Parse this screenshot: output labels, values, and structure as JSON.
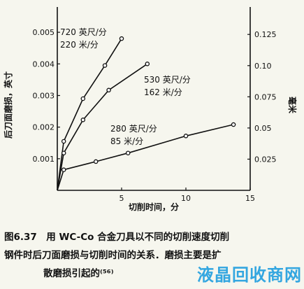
{
  "chart_data": {
    "type": "line",
    "xlabel": "切削时间，分",
    "ylabel_left": "后刀面磨损，英寸",
    "ylabel_right": "毫米",
    "xlim": [
      0,
      15
    ],
    "ylim_left": [
      0,
      0.0058
    ],
    "ylim_right": [
      0,
      0.147
    ],
    "x_ticks": [
      5,
      10,
      15
    ],
    "y_ticks_left": [
      0.001,
      0.002,
      0.003,
      0.004,
      0.005
    ],
    "y_tick_labels_left": [
      "0.001",
      "0.002",
      "0.003",
      "0.004",
      "0.005"
    ],
    "y_ticks_right": [
      0.025,
      0.05,
      0.075,
      0.1,
      0.125
    ],
    "y_tick_labels_right": [
      "0.025",
      "0.05",
      "0.075",
      "0.10",
      "0.125"
    ],
    "grid": false,
    "series": [
      {
        "name_line1": "720 英尺/分",
        "name_line2": "220 米/分",
        "x": [
          0,
          0.5,
          2.0,
          3.7,
          5.0
        ],
        "y": [
          0,
          0.00155,
          0.0029,
          0.00395,
          0.0048
        ]
      },
      {
        "name_line1": "530 英尺/分",
        "name_line2": "162 米/分",
        "x": [
          0,
          0.5,
          2.0,
          4.0,
          7.0
        ],
        "y": [
          0,
          0.00118,
          0.00223,
          0.00317,
          0.004
        ]
      },
      {
        "name_line1": "280 英尺/分",
        "name_line2": "85 米/分",
        "x": [
          0,
          0.5,
          3.0,
          5.5,
          10.0,
          13.7
        ],
        "y": [
          0,
          0.00065,
          0.00091,
          0.00118,
          0.00172,
          0.00208
        ]
      }
    ]
  },
  "caption": {
    "line1": "图6.37　用 WC-Co 合金刀具以不同的切削速度切削",
    "line2": "钢件时后刀面磨损与切削时间的关系．磨损主要是扩",
    "line3": "散磨损引起的⁽⁵⁶⁾"
  },
  "watermark": "液晶回收商网"
}
